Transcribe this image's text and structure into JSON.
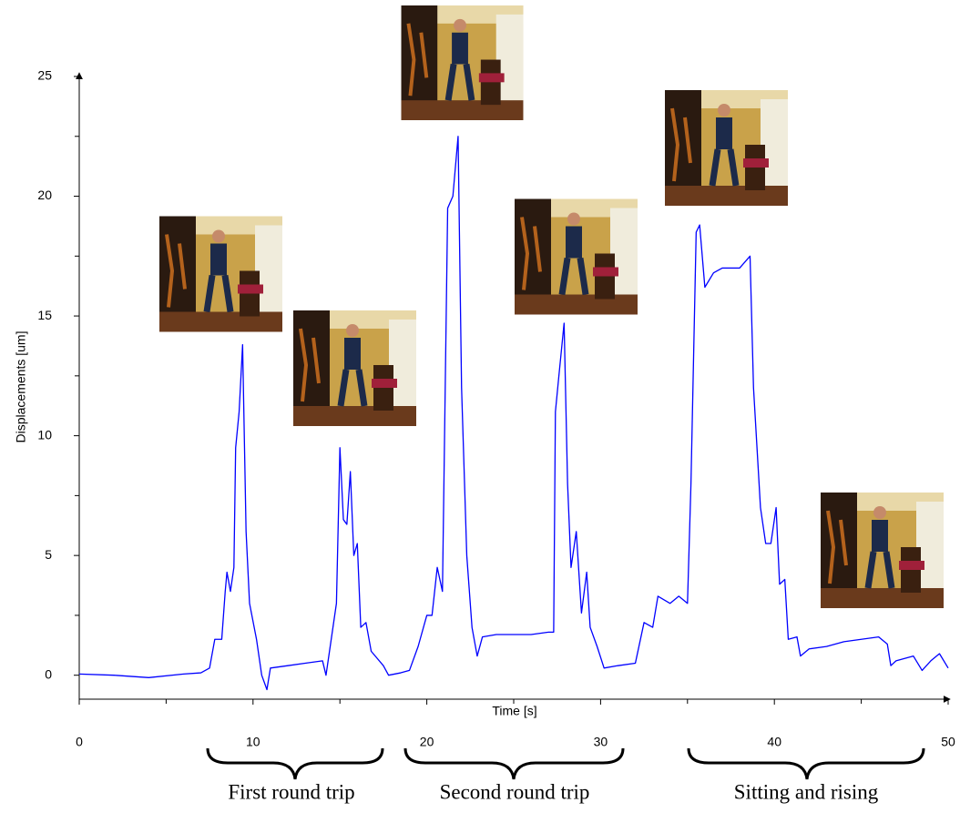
{
  "chart_data": {
    "type": "line",
    "x_label": "Time [s]",
    "y_label": "Displacements [um]",
    "x": [
      0,
      2,
      4,
      6,
      7,
      7.5,
      7.8,
      8.2,
      8.4,
      8.5,
      8.7,
      8.9,
      9.0,
      9.2,
      9.4,
      9.6,
      9.8,
      10.2,
      10.5,
      10.8,
      11.0,
      12,
      13,
      14,
      14.2,
      14.5,
      14.8,
      15.0,
      15.2,
      15.4,
      15.6,
      15.8,
      16.0,
      16.2,
      16.5,
      16.8,
      17.5,
      17.8,
      18.5,
      19,
      19.5,
      20,
      20.3,
      20.6,
      20.9,
      21.2,
      21.5,
      21.8,
      22.0,
      22.3,
      22.6,
      22.9,
      23.2,
      24,
      26,
      27,
      27.3,
      27.4,
      27.6,
      27.9,
      28.1,
      28.3,
      28.6,
      28.9,
      29.2,
      29.4,
      29.8,
      30.2,
      31,
      32,
      32.5,
      33,
      33.3,
      34,
      34.5,
      35,
      35.2,
      35.5,
      35.7,
      36,
      36.5,
      37,
      38,
      38.6,
      38.8,
      39.2,
      39.5,
      39.8,
      40.1,
      40.3,
      40.6,
      40.8,
      41.3,
      41.5,
      42,
      43,
      44,
      45,
      46,
      46.5,
      46.7,
      47,
      48,
      48.5,
      49,
      49.5,
      50
    ],
    "series": [
      {
        "color": "#0000ff",
        "values": [
          0.05,
          0.0,
          -0.1,
          0.05,
          0.1,
          0.3,
          1.5,
          1.5,
          3.5,
          4.3,
          3.5,
          4.5,
          9.5,
          11,
          13.8,
          6,
          3,
          1.5,
          0,
          -0.6,
          0.3,
          0.4,
          0.5,
          0.6,
          0,
          1.5,
          3,
          9.5,
          6.5,
          6.3,
          8.5,
          5,
          5.5,
          2,
          2.2,
          1,
          0.4,
          0,
          0.1,
          0.2,
          1.2,
          2.5,
          2.5,
          4.5,
          3.5,
          19.5,
          20,
          22.5,
          12,
          5,
          2,
          0.8,
          1.6,
          1.7,
          1.7,
          1.8,
          1.8,
          11,
          12.5,
          14.7,
          8,
          4.5,
          6,
          2.6,
          4.3,
          2,
          1.2,
          0.3,
          0.4,
          0.5,
          2.2,
          2,
          3.3,
          3,
          3.3,
          3,
          8,
          18.5,
          18.8,
          16.2,
          16.8,
          17,
          17,
          17.5,
          12,
          7,
          5.5,
          5.5,
          7,
          3.8,
          4,
          1.5,
          1.6,
          0.8,
          1.1,
          1.2,
          1.4,
          1.5,
          1.6,
          1.3,
          0.4,
          0.6,
          0.8,
          0.2,
          0.6,
          0.9,
          0.3
        ]
      }
    ],
    "xlim": [
      0,
      50
    ],
    "xticks": [
      0,
      10,
      20,
      30,
      40,
      50
    ],
    "xminorticks": [
      5,
      15,
      25,
      35,
      45
    ],
    "ylim": [
      -1,
      25
    ],
    "yticks": [
      0,
      5,
      10,
      15,
      20,
      25
    ],
    "yminorticks": [
      2.5,
      7.5,
      12.5,
      17.5,
      22.5
    ],
    "annotations": [
      "First round trip",
      "Second round trip",
      "Sitting and rising"
    ]
  }
}
